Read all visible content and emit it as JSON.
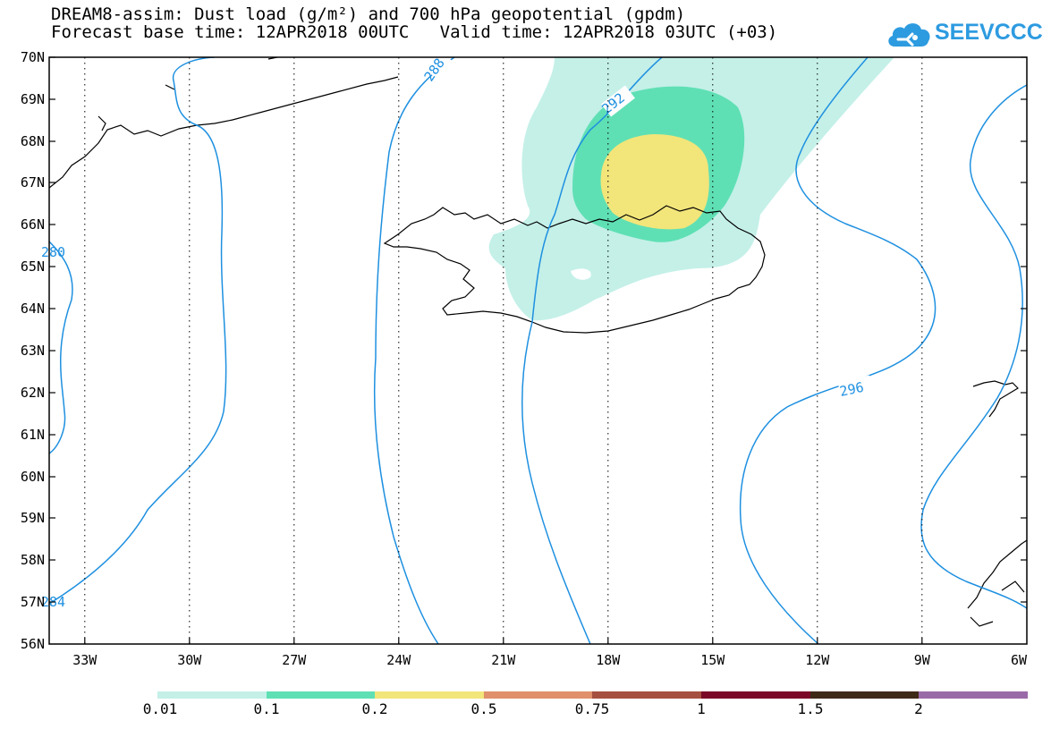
{
  "header": {
    "title_line1": "DREAM8-assim: Dust load (g/m²) and 700 hPa geopotential (gpdm)",
    "title_line2": "Forecast base time: 12APR2018 00UTC   Valid time: 12APR2018 03UTC (+03)"
  },
  "logo": {
    "text": "SEEVCCC",
    "icon": "cloud-icon",
    "color": "#2d9be0"
  },
  "map": {
    "lat_labels": [
      "70N",
      "69N",
      "68N",
      "67N",
      "66N",
      "65N",
      "64N",
      "63N",
      "62N",
      "61N",
      "60N",
      "59N",
      "58N",
      "57N",
      "56N"
    ],
    "lon_labels": [
      "33W",
      "30W",
      "27W",
      "24W",
      "21W",
      "18W",
      "15W",
      "12W",
      "9W",
      "6W"
    ],
    "contour_labels": [
      "288",
      "292",
      "296",
      "280",
      "284"
    ],
    "contour_color": "#1e90e0",
    "coastline_region": "Iceland"
  },
  "legend": {
    "labels": [
      "0.01",
      "0.1",
      "0.2",
      "0.5",
      "0.75",
      "1",
      "1.5",
      "2"
    ],
    "colors": [
      "#c4f0e8",
      "#5fe0b4",
      "#f2e57a",
      "#e0906a",
      "#a55040",
      "#7a0a28",
      "#3f2a18",
      "#9a6aa8"
    ]
  }
}
